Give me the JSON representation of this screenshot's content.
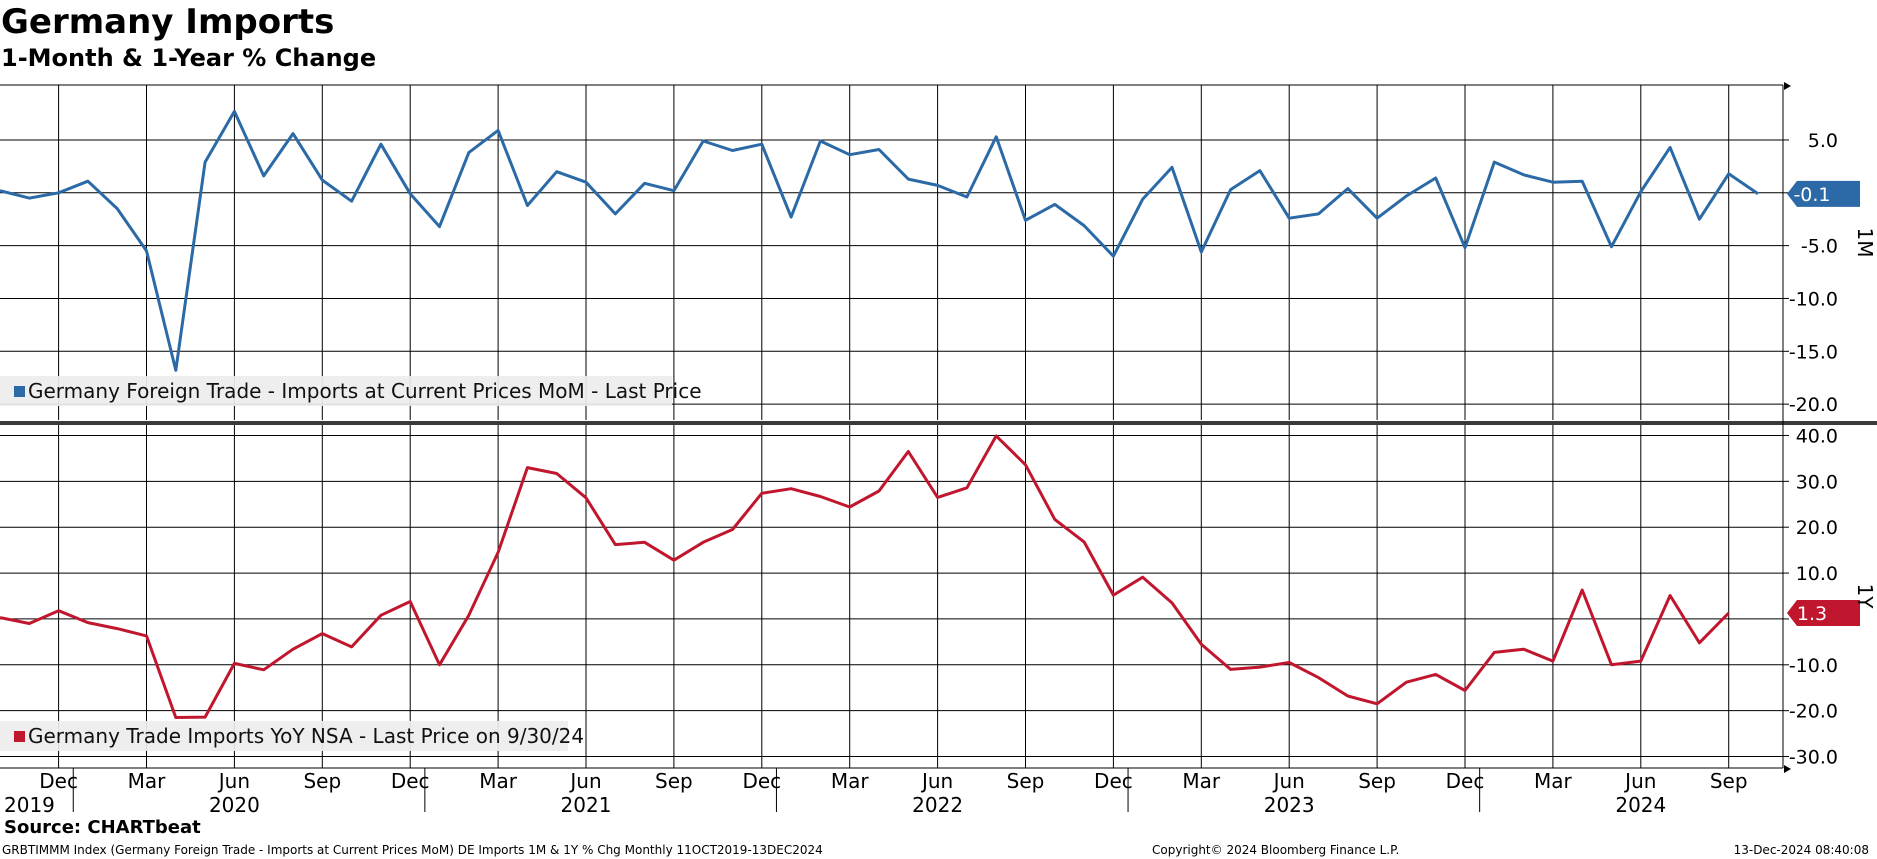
{
  "header": {
    "title": "Germany Imports",
    "subtitle": "1-Month & 1-Year % Change"
  },
  "footer": {
    "source": "Source: CHARTbeat",
    "description": "GRBTIMMM Index (Germany Foreign Trade - Imports at Current Prices MoM) DE Imports 1M & 1Y % Chg  Monthly 11OCT2019-13DEC2024",
    "copyright": "Copyright© 2024 Bloomberg Finance L.P.",
    "timestamp": "13-Dec-2024 08:40:08"
  },
  "colors": {
    "mom": "#2b6aa6",
    "yoy": "#c0162e"
  },
  "chart_data": [
    {
      "type": "line",
      "panel": "1M",
      "legend": "Germany Foreign Trade - Imports at Current Prices MoM - Last Price",
      "last_value_label": "-0.1",
      "ylim": [
        -21.5,
        10.2
      ],
      "yticks": [
        5.0,
        0.0,
        -5.0,
        -10.0,
        -15.0,
        -20.0
      ],
      "ytick_labels": [
        "5.0",
        "",
        "-5.0",
        "-10.0",
        "-15.0",
        "-20.0"
      ],
      "x": [
        "2019-10",
        "2019-11",
        "2019-12",
        "2020-01",
        "2020-02",
        "2020-03",
        "2020-04",
        "2020-05",
        "2020-06",
        "2020-07",
        "2020-08",
        "2020-09",
        "2020-10",
        "2020-11",
        "2020-12",
        "2021-01",
        "2021-02",
        "2021-03",
        "2021-04",
        "2021-05",
        "2021-06",
        "2021-07",
        "2021-08",
        "2021-09",
        "2021-10",
        "2021-11",
        "2021-12",
        "2022-01",
        "2022-02",
        "2022-03",
        "2022-04",
        "2022-05",
        "2022-06",
        "2022-07",
        "2022-08",
        "2022-09",
        "2022-10",
        "2022-11",
        "2022-12",
        "2023-01",
        "2023-02",
        "2023-03",
        "2023-04",
        "2023-05",
        "2023-06",
        "2023-07",
        "2023-08",
        "2023-09",
        "2023-10",
        "2023-11",
        "2023-12",
        "2024-01",
        "2024-02",
        "2024-03",
        "2024-04",
        "2024-05",
        "2024-06",
        "2024-07",
        "2024-08",
        "2024-09",
        "2024-10"
      ],
      "values": [
        0.2,
        -0.5,
        0.0,
        1.1,
        -1.5,
        -5.5,
        -16.8,
        2.9,
        7.7,
        1.6,
        5.6,
        1.2,
        -0.8,
        4.6,
        -0.1,
        -3.2,
        3.8,
        5.9,
        -1.2,
        2.0,
        1.0,
        -2.0,
        0.9,
        0.2,
        4.9,
        4.0,
        4.6,
        -2.3,
        4.9,
        3.6,
        4.1,
        1.3,
        0.7,
        -0.4,
        5.3,
        -2.6,
        -1.1,
        -3.1,
        -6.0,
        -0.6,
        2.4,
        -5.6,
        0.3,
        2.1,
        -2.4,
        -2.0,
        0.4,
        -2.4,
        -0.3,
        1.4,
        -5.2,
        2.9,
        1.7,
        1.0,
        1.1,
        -5.1,
        0.1,
        4.3,
        -2.5,
        1.8,
        -0.1
      ]
    },
    {
      "type": "line",
      "panel": "1Y",
      "legend": "Germany Trade Imports YoY NSA - Last Price on 9/30/24",
      "last_value_label": "1.3",
      "ylim": [
        -32.5,
        42.5
      ],
      "yticks": [
        40.0,
        30.0,
        20.0,
        10.0,
        0.0,
        -10.0,
        -20.0,
        -30.0
      ],
      "ytick_labels": [
        "40.0",
        "30.0",
        "20.0",
        "10.0",
        "",
        "-10.0",
        "-20.0",
        "-30.0"
      ],
      "x": [
        "2019-10",
        "2019-11",
        "2019-12",
        "2020-01",
        "2020-02",
        "2020-03",
        "2020-04",
        "2020-05",
        "2020-06",
        "2020-07",
        "2020-08",
        "2020-09",
        "2020-10",
        "2020-11",
        "2020-12",
        "2021-01",
        "2021-02",
        "2021-03",
        "2021-04",
        "2021-05",
        "2021-06",
        "2021-07",
        "2021-08",
        "2021-09",
        "2021-10",
        "2021-11",
        "2021-12",
        "2022-01",
        "2022-02",
        "2022-03",
        "2022-04",
        "2022-05",
        "2022-06",
        "2022-07",
        "2022-08",
        "2022-09",
        "2022-10",
        "2022-11",
        "2022-12",
        "2023-01",
        "2023-02",
        "2023-03",
        "2023-04",
        "2023-05",
        "2023-06",
        "2023-07",
        "2023-08",
        "2023-09",
        "2023-10",
        "2023-11",
        "2023-12",
        "2024-01",
        "2024-02",
        "2024-03",
        "2024-04",
        "2024-05",
        "2024-06",
        "2024-07",
        "2024-08",
        "2024-09"
      ],
      "values": [
        0.3,
        -1.0,
        1.8,
        -0.8,
        -2.1,
        -3.7,
        -21.5,
        -21.4,
        -9.7,
        -11.1,
        -6.6,
        -3.2,
        -6.1,
        0.8,
        3.8,
        -10.0,
        0.8,
        14.5,
        33.0,
        31.7,
        26.4,
        16.2,
        16.7,
        12.8,
        16.7,
        19.5,
        27.4,
        28.4,
        26.7,
        24.4,
        27.9,
        36.5,
        26.5,
        28.6,
        39.9,
        33.6,
        21.7,
        16.8,
        5.2,
        9.1,
        3.5,
        -5.5,
        -11.0,
        -10.5,
        -9.5,
        -12.8,
        -16.8,
        -18.5,
        -13.8,
        -12.1,
        -15.6,
        -7.3,
        -6.6,
        -9.2,
        6.3,
        -10.0,
        -9.2,
        5.1,
        -5.2,
        1.3
      ]
    }
  ],
  "x_axis": {
    "month_labels": [
      {
        "date": "2019-12",
        "label": "Dec"
      },
      {
        "date": "2020-03",
        "label": "Mar"
      },
      {
        "date": "2020-06",
        "label": "Jun"
      },
      {
        "date": "2020-09",
        "label": "Sep"
      },
      {
        "date": "2020-12",
        "label": "Dec"
      },
      {
        "date": "2021-03",
        "label": "Mar"
      },
      {
        "date": "2021-06",
        "label": "Jun"
      },
      {
        "date": "2021-09",
        "label": "Sep"
      },
      {
        "date": "2021-12",
        "label": "Dec"
      },
      {
        "date": "2022-03",
        "label": "Mar"
      },
      {
        "date": "2022-06",
        "label": "Jun"
      },
      {
        "date": "2022-09",
        "label": "Sep"
      },
      {
        "date": "2022-12",
        "label": "Dec"
      },
      {
        "date": "2023-03",
        "label": "Mar"
      },
      {
        "date": "2023-06",
        "label": "Jun"
      },
      {
        "date": "2023-09",
        "label": "Sep"
      },
      {
        "date": "2023-12",
        "label": "Dec"
      },
      {
        "date": "2024-03",
        "label": "Mar"
      },
      {
        "date": "2024-06",
        "label": "Jun"
      },
      {
        "date": "2024-09",
        "label": "Sep"
      }
    ],
    "year_labels": [
      {
        "date": "2019-10",
        "label": "2019"
      },
      {
        "date": "2020-06",
        "label": "2020"
      },
      {
        "date": "2021-06",
        "label": "2021"
      },
      {
        "date": "2022-06",
        "label": "2022"
      },
      {
        "date": "2023-06",
        "label": "2023"
      },
      {
        "date": "2024-06",
        "label": "2024"
      }
    ],
    "year_separators": [
      "2020-01",
      "2021-01",
      "2022-01",
      "2023-01",
      "2024-01"
    ]
  }
}
